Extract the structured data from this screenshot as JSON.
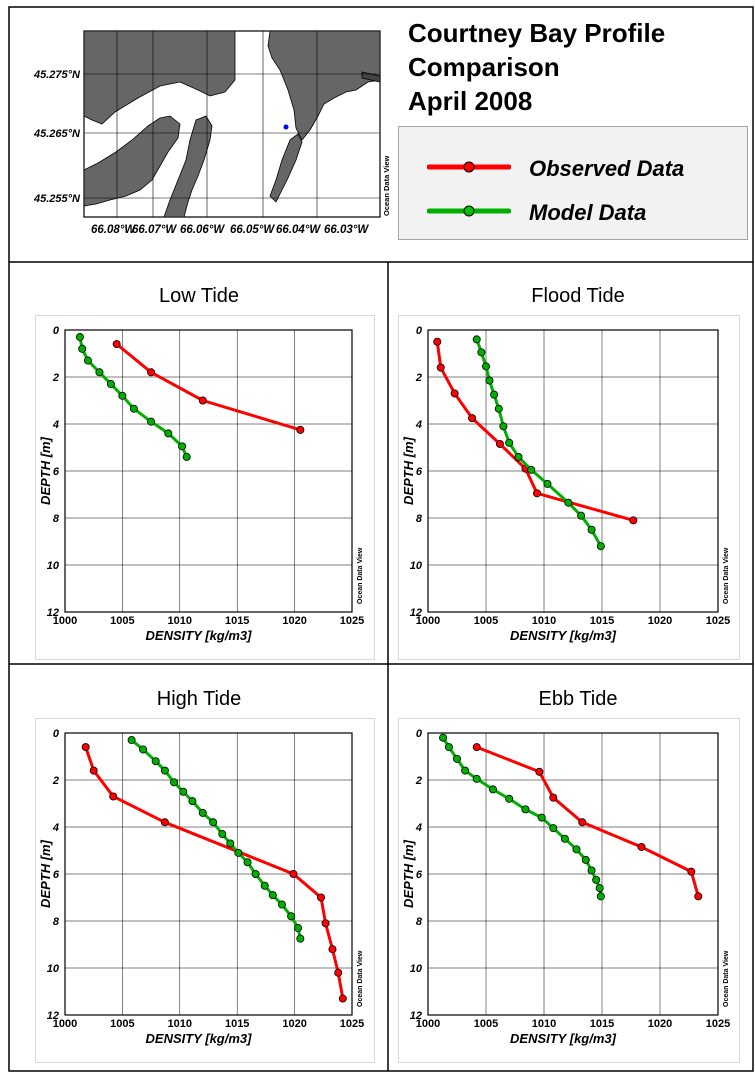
{
  "header": {
    "title_lines": [
      "Courtney Bay Profile",
      "Comparison",
      "April 2008"
    ]
  },
  "legend": {
    "items": [
      {
        "label": "Observed Data",
        "color": "#ff0000"
      },
      {
        "label": "Model Data",
        "color": "#00b000"
      }
    ]
  },
  "map": {
    "lat_labels": [
      "45.275°N",
      "45.265°N",
      "45.255°N"
    ],
    "lon_labels": [
      "66.08°W",
      "66.07°W",
      "66.06°W",
      "66.05°W",
      "66.04°W",
      "66.03°W"
    ],
    "watermark": "Ocean Data View",
    "land_color": "#666666",
    "station_color": "#0000ff"
  },
  "chart_data": [
    {
      "type": "line",
      "title": "Low Tide",
      "xlabel": "DENSITY [kg/m3]",
      "ylabel": "DEPTH [m]",
      "xlim": [
        1000,
        1025
      ],
      "ylim": [
        0,
        12
      ],
      "y_inverted": true,
      "xticks": [
        1000,
        1005,
        1010,
        1015,
        1020,
        1025
      ],
      "yticks": [
        0,
        2,
        4,
        6,
        8,
        10,
        12
      ],
      "grid": true,
      "watermark": "Ocean Data View",
      "series": [
        {
          "name": "Observed Data",
          "color": "#ff0000",
          "points": [
            [
              1004.5,
              0.6
            ],
            [
              1007.5,
              1.8
            ],
            [
              1012,
              3.0
            ],
            [
              1020.5,
              4.25
            ]
          ]
        },
        {
          "name": "Model Data",
          "color": "#00b000",
          "points": [
            [
              1001.3,
              0.3
            ],
            [
              1001.5,
              0.8
            ],
            [
              1002,
              1.3
            ],
            [
              1003,
              1.8
            ],
            [
              1004,
              2.3
            ],
            [
              1005,
              2.8
            ],
            [
              1006,
              3.35
            ],
            [
              1007.5,
              3.9
            ],
            [
              1009,
              4.4
            ],
            [
              1010.2,
              4.95
            ],
            [
              1010.6,
              5.4
            ]
          ]
        }
      ]
    },
    {
      "type": "line",
      "title": "Flood Tide",
      "xlabel": "DENSITY [kg/m3]",
      "ylabel": "DEPTH [m]",
      "xlim": [
        1000,
        1025
      ],
      "ylim": [
        0,
        12
      ],
      "y_inverted": true,
      "xticks": [
        1000,
        1005,
        1010,
        1015,
        1020,
        1025
      ],
      "yticks": [
        0,
        2,
        4,
        6,
        8,
        10,
        12
      ],
      "grid": true,
      "watermark": "Ocean Data View",
      "series": [
        {
          "name": "Observed Data",
          "color": "#ff0000",
          "points": [
            [
              1000.8,
              0.5
            ],
            [
              1001.1,
              1.6
            ],
            [
              1002.3,
              2.7
            ],
            [
              1003.8,
              3.75
            ],
            [
              1006.2,
              4.85
            ],
            [
              1008.4,
              5.9
            ],
            [
              1009.4,
              6.95
            ],
            [
              1017.7,
              8.1
            ]
          ]
        },
        {
          "name": "Model Data",
          "color": "#00b000",
          "points": [
            [
              1004.2,
              0.4
            ],
            [
              1004.6,
              0.95
            ],
            [
              1005,
              1.55
            ],
            [
              1005.3,
              2.15
            ],
            [
              1005.7,
              2.75
            ],
            [
              1006.1,
              3.35
            ],
            [
              1006.5,
              4.1
            ],
            [
              1007,
              4.8
            ],
            [
              1007.8,
              5.4
            ],
            [
              1008.9,
              5.95
            ],
            [
              1010.3,
              6.55
            ],
            [
              1012.1,
              7.35
            ],
            [
              1013.2,
              7.9
            ],
            [
              1014.1,
              8.5
            ],
            [
              1014.9,
              9.2
            ]
          ]
        }
      ]
    },
    {
      "type": "line",
      "title": "High Tide",
      "xlabel": "DENSITY [kg/m3]",
      "ylabel": "DEPTH [m]",
      "xlim": [
        1000,
        1025
      ],
      "ylim": [
        0,
        12
      ],
      "y_inverted": true,
      "xticks": [
        1000,
        1005,
        1010,
        1015,
        1020,
        1025
      ],
      "yticks": [
        0,
        2,
        4,
        6,
        8,
        10,
        12
      ],
      "grid": true,
      "watermark": "Ocean Data View",
      "series": [
        {
          "name": "Observed Data",
          "color": "#ff0000",
          "points": [
            [
              1001.8,
              0.6
            ],
            [
              1002.5,
              1.6
            ],
            [
              1004.2,
              2.7
            ],
            [
              1008.7,
              3.8
            ],
            [
              1019.9,
              6.0
            ],
            [
              1022.3,
              7.0
            ],
            [
              1022.7,
              8.1
            ],
            [
              1023.3,
              9.2
            ],
            [
              1023.8,
              10.2
            ],
            [
              1024.2,
              11.3
            ]
          ]
        },
        {
          "name": "Model Data",
          "color": "#00b000",
          "points": [
            [
              1005.8,
              0.3
            ],
            [
              1006.8,
              0.7
            ],
            [
              1007.9,
              1.2
            ],
            [
              1008.7,
              1.6
            ],
            [
              1009.5,
              2.1
            ],
            [
              1010.3,
              2.5
            ],
            [
              1011.1,
              2.9
            ],
            [
              1012,
              3.4
            ],
            [
              1012.9,
              3.8
            ],
            [
              1013.7,
              4.3
            ],
            [
              1014.4,
              4.7
            ],
            [
              1015.1,
              5.1
            ],
            [
              1015.9,
              5.5
            ],
            [
              1016.6,
              6.0
            ],
            [
              1017.4,
              6.5
            ],
            [
              1018.1,
              6.9
            ],
            [
              1018.9,
              7.3
            ],
            [
              1019.7,
              7.8
            ],
            [
              1020.3,
              8.3
            ],
            [
              1020.5,
              8.75
            ]
          ]
        }
      ]
    },
    {
      "type": "line",
      "title": "Ebb Tide",
      "xlabel": "DENSITY [kg/m3]",
      "ylabel": "DEPTH [m]",
      "xlim": [
        1000,
        1025
      ],
      "ylim": [
        0,
        12
      ],
      "y_inverted": true,
      "xticks": [
        1000,
        1005,
        1010,
        1015,
        1020,
        1025
      ],
      "yticks": [
        0,
        2,
        4,
        6,
        8,
        10,
        12
      ],
      "grid": true,
      "watermark": "Ocean Data View",
      "series": [
        {
          "name": "Observed Data",
          "color": "#ff0000",
          "points": [
            [
              1004.2,
              0.6
            ],
            [
              1009.6,
              1.65
            ],
            [
              1010.8,
              2.75
            ],
            [
              1013.3,
              3.8
            ],
            [
              1018.4,
              4.85
            ],
            [
              1022.7,
              5.9
            ],
            [
              1023.3,
              6.95
            ]
          ]
        },
        {
          "name": "Model Data",
          "color": "#00b000",
          "points": [
            [
              1001.3,
              0.2
            ],
            [
              1001.8,
              0.6
            ],
            [
              1002.5,
              1.1
            ],
            [
              1003.2,
              1.6
            ],
            [
              1004.2,
              1.95
            ],
            [
              1005.6,
              2.4
            ],
            [
              1007,
              2.8
            ],
            [
              1008.4,
              3.25
            ],
            [
              1009.8,
              3.6
            ],
            [
              1010.8,
              4.05
            ],
            [
              1011.8,
              4.5
            ],
            [
              1012.8,
              4.95
            ],
            [
              1013.6,
              5.4
            ],
            [
              1014.1,
              5.85
            ],
            [
              1014.5,
              6.25
            ],
            [
              1014.8,
              6.6
            ],
            [
              1014.9,
              6.95
            ]
          ]
        }
      ]
    }
  ]
}
